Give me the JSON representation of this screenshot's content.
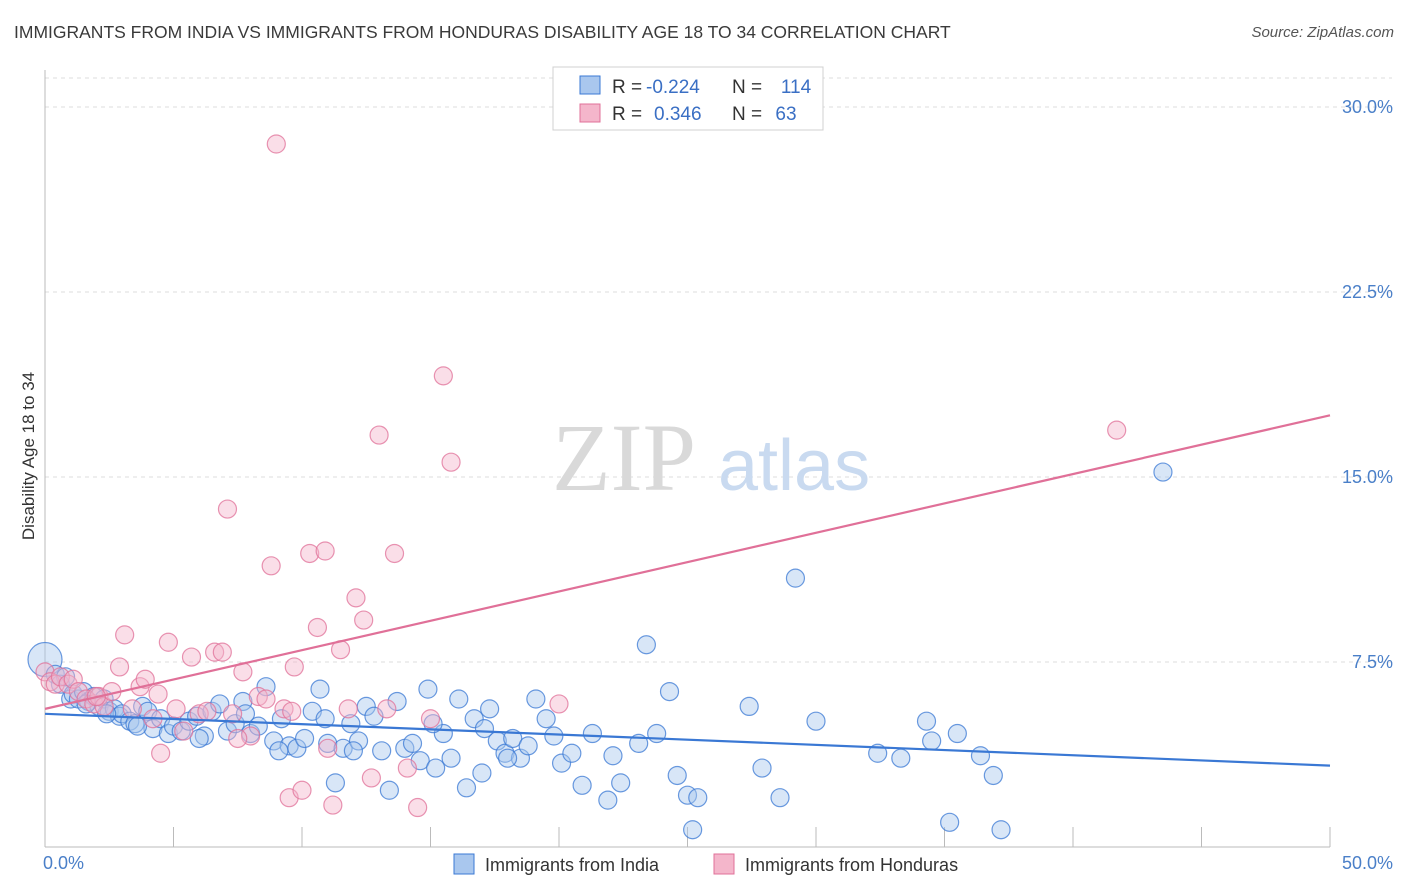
{
  "title": "IMMIGRANTS FROM INDIA VS IMMIGRANTS FROM HONDURAS DISABILITY AGE 18 TO 34 CORRELATION CHART",
  "source": "Source: ZipAtlas.com",
  "watermark": {
    "zip": "ZIP",
    "atlas": "atlas"
  },
  "colors": {
    "india": "#3a78d4",
    "india_fill": "#a9c7ee",
    "honduras": "#e07098",
    "honduras_fill": "#f4b6cb"
  },
  "legend": {
    "rows": [
      {
        "r_label": "R =",
        "r_value": "-0.224",
        "n_label": "N =",
        "n_value": "114"
      },
      {
        "r_label": "R =",
        "r_value": "0.346",
        "n_label": "N =",
        "n_value": "63"
      }
    ]
  },
  "chart_data": {
    "type": "scatter",
    "title": "IMMIGRANTS FROM INDIA VS IMMIGRANTS FROM HONDURAS DISABILITY AGE 18 TO 34 CORRELATION CHART",
    "xlabel": "",
    "ylabel": "Disability Age 18 to 34",
    "xlim": [
      0,
      50
    ],
    "ylim": [
      0,
      31.5
    ],
    "x_tick_labels": [
      "0.0%",
      "50.0%"
    ],
    "y_ticks": [
      7.5,
      15.0,
      22.5,
      30.0
    ],
    "y_tick_labels": [
      "7.5%",
      "15.0%",
      "22.5%",
      "30.0%"
    ],
    "grid": true,
    "legend_position": "top-center",
    "series": [
      {
        "name": "Immigrants from India",
        "trend": {
          "x": [
            0,
            50
          ],
          "y": [
            5.4,
            3.3
          ]
        },
        "points": [
          [
            0.0,
            7.6
          ],
          [
            0.4,
            7.0
          ],
          [
            0.6,
            6.6
          ],
          [
            0.8,
            6.9
          ],
          [
            1.0,
            6.0
          ],
          [
            1.1,
            6.2
          ],
          [
            1.3,
            6.0
          ],
          [
            1.5,
            6.3
          ],
          [
            1.7,
            5.9
          ],
          [
            1.9,
            6.1
          ],
          [
            2.1,
            5.7
          ],
          [
            2.3,
            6.0
          ],
          [
            2.5,
            5.5
          ],
          [
            2.7,
            5.6
          ],
          [
            2.9,
            5.3
          ],
          [
            3.0,
            5.4
          ],
          [
            3.3,
            5.1
          ],
          [
            3.5,
            5.0
          ],
          [
            3.8,
            5.7
          ],
          [
            4.0,
            5.5
          ],
          [
            4.2,
            4.8
          ],
          [
            4.5,
            5.2
          ],
          [
            4.8,
            4.6
          ],
          [
            5.0,
            4.9
          ],
          [
            5.3,
            4.7
          ],
          [
            5.6,
            5.1
          ],
          [
            5.9,
            5.3
          ],
          [
            6.2,
            4.5
          ],
          [
            6.5,
            5.5
          ],
          [
            6.8,
            5.8
          ],
          [
            7.1,
            4.7
          ],
          [
            7.4,
            5.0
          ],
          [
            7.7,
            5.9
          ],
          [
            8.0,
            4.6
          ],
          [
            8.3,
            4.9
          ],
          [
            8.6,
            6.5
          ],
          [
            8.9,
            4.3
          ],
          [
            9.2,
            5.2
          ],
          [
            9.5,
            4.1
          ],
          [
            9.8,
            4.0
          ],
          [
            10.1,
            4.4
          ],
          [
            10.4,
            5.5
          ],
          [
            10.7,
            6.4
          ],
          [
            11.0,
            4.2
          ],
          [
            11.3,
            2.6
          ],
          [
            11.6,
            4.0
          ],
          [
            11.9,
            5.0
          ],
          [
            12.2,
            4.3
          ],
          [
            12.5,
            5.7
          ],
          [
            12.8,
            5.3
          ],
          [
            13.1,
            3.9
          ],
          [
            13.4,
            2.3
          ],
          [
            13.7,
            5.9
          ],
          [
            14.0,
            4.0
          ],
          [
            14.3,
            4.2
          ],
          [
            14.6,
            3.5
          ],
          [
            14.9,
            6.4
          ],
          [
            15.2,
            3.2
          ],
          [
            15.5,
            4.6
          ],
          [
            15.8,
            3.6
          ],
          [
            16.1,
            6.0
          ],
          [
            16.4,
            2.4
          ],
          [
            16.7,
            5.2
          ],
          [
            17.0,
            3.0
          ],
          [
            17.3,
            5.6
          ],
          [
            17.6,
            4.3
          ],
          [
            17.9,
            3.8
          ],
          [
            18.2,
            4.4
          ],
          [
            18.5,
            3.6
          ],
          [
            18.8,
            4.1
          ],
          [
            19.1,
            6.0
          ],
          [
            19.5,
            5.2
          ],
          [
            19.8,
            4.5
          ],
          [
            20.1,
            3.4
          ],
          [
            20.5,
            3.8
          ],
          [
            20.9,
            2.5
          ],
          [
            21.3,
            4.6
          ],
          [
            21.9,
            1.9
          ],
          [
            22.1,
            3.7
          ],
          [
            22.4,
            2.6
          ],
          [
            23.4,
            8.2
          ],
          [
            23.8,
            4.6
          ],
          [
            24.3,
            6.3
          ],
          [
            24.6,
            2.9
          ],
          [
            25.0,
            2.1
          ],
          [
            25.2,
            0.7
          ],
          [
            25.4,
            2.0
          ],
          [
            27.4,
            5.7
          ],
          [
            27.9,
            3.2
          ],
          [
            28.6,
            2.0
          ],
          [
            29.2,
            10.9
          ],
          [
            30.0,
            5.1
          ],
          [
            32.4,
            3.8
          ],
          [
            33.3,
            3.6
          ],
          [
            34.3,
            5.1
          ],
          [
            34.5,
            4.3
          ],
          [
            35.2,
            1.0
          ],
          [
            35.5,
            4.6
          ],
          [
            36.4,
            3.7
          ],
          [
            36.9,
            2.9
          ],
          [
            37.2,
            0.7
          ],
          [
            43.5,
            15.2
          ],
          [
            1.6,
            5.8
          ],
          [
            2.4,
            5.4
          ],
          [
            3.6,
            4.9
          ],
          [
            6.0,
            4.4
          ],
          [
            7.8,
            5.4
          ],
          [
            9.1,
            3.9
          ],
          [
            10.9,
            5.2
          ],
          [
            12.0,
            3.9
          ],
          [
            15.1,
            5.0
          ],
          [
            17.1,
            4.8
          ],
          [
            18.0,
            3.6
          ],
          [
            23.1,
            4.2
          ]
        ]
      },
      {
        "name": "Immigrants from Honduras",
        "trend": {
          "x": [
            0,
            50
          ],
          "y": [
            5.6,
            17.5
          ]
        },
        "points": [
          [
            0.0,
            7.1
          ],
          [
            0.2,
            6.7
          ],
          [
            0.4,
            6.6
          ],
          [
            0.6,
            6.9
          ],
          [
            0.9,
            6.6
          ],
          [
            1.1,
            6.8
          ],
          [
            1.3,
            6.3
          ],
          [
            1.6,
            6.0
          ],
          [
            1.9,
            5.8
          ],
          [
            2.1,
            6.1
          ],
          [
            2.3,
            5.7
          ],
          [
            2.6,
            6.3
          ],
          [
            2.9,
            7.3
          ],
          [
            3.1,
            8.6
          ],
          [
            3.4,
            5.6
          ],
          [
            3.7,
            6.5
          ],
          [
            3.9,
            6.8
          ],
          [
            4.2,
            5.2
          ],
          [
            4.5,
            3.8
          ],
          [
            4.8,
            8.3
          ],
          [
            5.1,
            5.6
          ],
          [
            5.4,
            4.7
          ],
          [
            5.7,
            7.7
          ],
          [
            6.0,
            5.4
          ],
          [
            6.3,
            5.5
          ],
          [
            6.6,
            7.9
          ],
          [
            6.9,
            7.9
          ],
          [
            7.1,
            13.7
          ],
          [
            7.3,
            5.4
          ],
          [
            7.7,
            7.1
          ],
          [
            8.0,
            4.5
          ],
          [
            8.3,
            6.1
          ],
          [
            8.6,
            6.0
          ],
          [
            8.8,
            11.4
          ],
          [
            9.0,
            28.5
          ],
          [
            9.3,
            5.6
          ],
          [
            9.5,
            2.0
          ],
          [
            9.7,
            7.3
          ],
          [
            10.0,
            2.3
          ],
          [
            10.3,
            11.9
          ],
          [
            10.6,
            8.9
          ],
          [
            10.9,
            12.0
          ],
          [
            11.2,
            1.7
          ],
          [
            11.5,
            8.0
          ],
          [
            11.8,
            5.6
          ],
          [
            12.1,
            10.1
          ],
          [
            12.4,
            9.2
          ],
          [
            12.7,
            2.8
          ],
          [
            13.0,
            16.7
          ],
          [
            13.3,
            5.6
          ],
          [
            13.6,
            11.9
          ],
          [
            14.1,
            3.2
          ],
          [
            14.5,
            1.6
          ],
          [
            15.0,
            5.2
          ],
          [
            15.5,
            19.1
          ],
          [
            15.8,
            15.6
          ],
          [
            20.0,
            5.8
          ],
          [
            41.7,
            16.9
          ],
          [
            11.0,
            4.0
          ],
          [
            7.5,
            4.4
          ],
          [
            2.0,
            6.1
          ],
          [
            4.4,
            6.2
          ],
          [
            9.6,
            5.5
          ]
        ]
      }
    ]
  }
}
